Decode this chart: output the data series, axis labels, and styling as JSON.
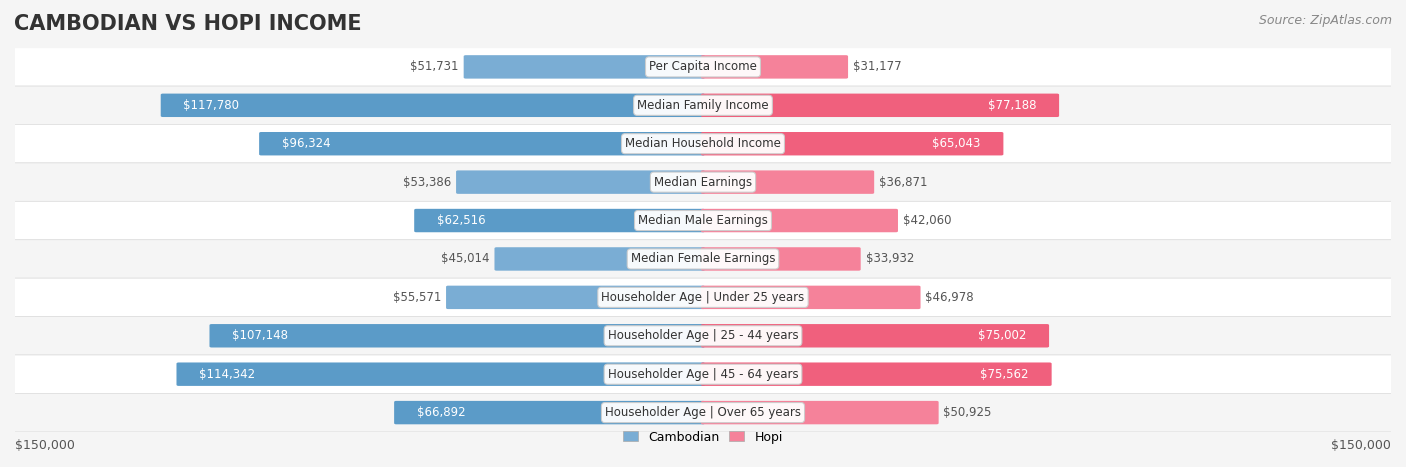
{
  "title": "CAMBODIAN VS HOPI INCOME",
  "source": "Source: ZipAtlas.com",
  "categories": [
    "Per Capita Income",
    "Median Family Income",
    "Median Household Income",
    "Median Earnings",
    "Median Male Earnings",
    "Median Female Earnings",
    "Householder Age | Under 25 years",
    "Householder Age | 25 - 44 years",
    "Householder Age | 45 - 64 years",
    "Householder Age | Over 65 years"
  ],
  "cambodian_values": [
    51731,
    117780,
    96324,
    53386,
    62516,
    45014,
    55571,
    107148,
    114342,
    66892
  ],
  "hopi_values": [
    31177,
    77188,
    65043,
    36871,
    42060,
    33932,
    46978,
    75002,
    75562,
    50925
  ],
  "cambodian_labels": [
    "$51,731",
    "$117,780",
    "$96,324",
    "$53,386",
    "$62,516",
    "$45,014",
    "$55,571",
    "$107,148",
    "$114,342",
    "$66,892"
  ],
  "hopi_labels": [
    "$31,177",
    "$77,188",
    "$65,043",
    "$36,871",
    "$42,060",
    "$33,932",
    "$46,978",
    "$75,002",
    "$75,562",
    "$50,925"
  ],
  "cambodian_color": "#7aadd4",
  "cambodian_color_strong": "#5b9bc8",
  "hopi_color": "#f5829a",
  "hopi_color_strong": "#f0607d",
  "max_value": 150000,
  "x_label_left": "$150,000",
  "x_label_right": "$150,000",
  "background_color": "#f5f5f5",
  "row_bg_color": "#ffffff",
  "row_bg_alt": "#f0f0f0",
  "title_fontsize": 15,
  "source_fontsize": 9,
  "label_fontsize": 8.5
}
